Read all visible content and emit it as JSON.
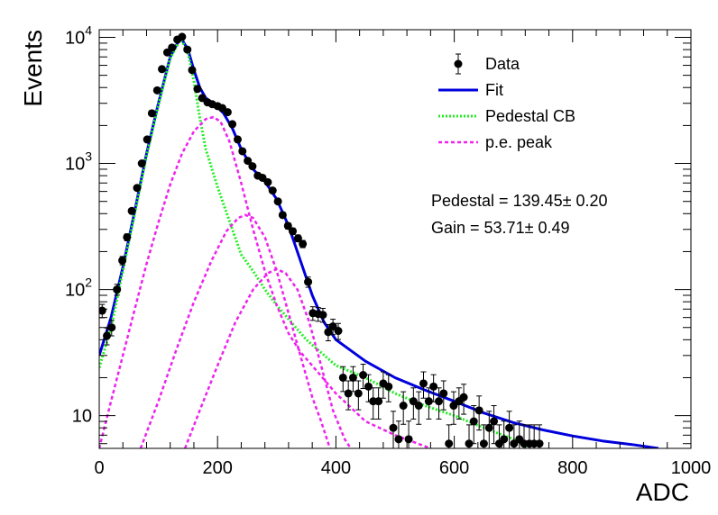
{
  "chart_data": {
    "type": "scatter",
    "title": "",
    "xlabel": "ADC",
    "ylabel": "Events",
    "xlim": [
      0,
      1000
    ],
    "ylim": [
      5.5,
      11500
    ],
    "yscale": "log",
    "grid": false,
    "legend_position": "top-right",
    "x_ticks": [
      0,
      200,
      400,
      600,
      800,
      1000
    ],
    "x_tick_labels": [
      "0",
      "200",
      "400",
      "600",
      "800",
      "1000"
    ],
    "y_ticks": [
      10,
      100,
      1000,
      10000
    ],
    "y_tick_labels": [
      {
        "base": "10",
        "exp": ""
      },
      {
        "base": "10",
        "exp": "2"
      },
      {
        "base": "10",
        "exp": "3"
      },
      {
        "base": "10",
        "exp": "4"
      }
    ],
    "annotations": [
      "Pedestal = 139.45± 0.20",
      "Gain = 53.71± 0.49"
    ],
    "legend": [
      {
        "label": "Data",
        "style": "marker",
        "color": "#000000"
      },
      {
        "label": "Fit",
        "style": "solid",
        "color": "#0000dd"
      },
      {
        "label": "Pedestal CB",
        "style": "dotted",
        "color": "#22ee22"
      },
      {
        "label": "p.e. peak",
        "style": "dashed",
        "color": "#ee22ee"
      }
    ],
    "series": [
      {
        "name": "Data",
        "kind": "points",
        "color": "#000000",
        "points": [
          {
            "x": 5,
            "y": 68
          },
          {
            "x": 13,
            "y": 43
          },
          {
            "x": 21,
            "y": 50
          },
          {
            "x": 30,
            "y": 100
          },
          {
            "x": 39,
            "y": 170
          },
          {
            "x": 47,
            "y": 260
          },
          {
            "x": 55,
            "y": 420
          },
          {
            "x": 64,
            "y": 640
          },
          {
            "x": 72,
            "y": 1000
          },
          {
            "x": 81,
            "y": 1550
          },
          {
            "x": 89,
            "y": 2500
          },
          {
            "x": 98,
            "y": 3800
          },
          {
            "x": 106,
            "y": 5600
          },
          {
            "x": 115,
            "y": 7600
          },
          {
            "x": 123,
            "y": 8300
          },
          {
            "x": 132,
            "y": 9600
          },
          {
            "x": 140,
            "y": 10100
          },
          {
            "x": 149,
            "y": 8000
          },
          {
            "x": 157,
            "y": 5500
          },
          {
            "x": 166,
            "y": 3900
          },
          {
            "x": 174,
            "y": 3300
          },
          {
            "x": 183,
            "y": 3050
          },
          {
            "x": 191,
            "y": 2950
          },
          {
            "x": 200,
            "y": 2850
          },
          {
            "x": 208,
            "y": 2750
          },
          {
            "x": 217,
            "y": 2550
          },
          {
            "x": 225,
            "y": 2050
          },
          {
            "x": 234,
            "y": 1550
          },
          {
            "x": 242,
            "y": 1250
          },
          {
            "x": 251,
            "y": 1050
          },
          {
            "x": 259,
            "y": 950
          },
          {
            "x": 268,
            "y": 800
          },
          {
            "x": 276,
            "y": 770
          },
          {
            "x": 285,
            "y": 710
          },
          {
            "x": 293,
            "y": 610
          },
          {
            "x": 302,
            "y": 500
          },
          {
            "x": 310,
            "y": 390
          },
          {
            "x": 319,
            "y": 320
          },
          {
            "x": 327,
            "y": 290
          },
          {
            "x": 336,
            "y": 255
          },
          {
            "x": 344,
            "y": 230
          },
          {
            "x": 353,
            "y": 115
          },
          {
            "x": 361,
            "y": 65
          },
          {
            "x": 370,
            "y": 64
          },
          {
            "x": 378,
            "y": 63
          },
          {
            "x": 387,
            "y": 46
          },
          {
            "x": 395,
            "y": 51
          },
          {
            "x": 404,
            "y": 47
          },
          {
            "x": 412,
            "y": 20
          },
          {
            "x": 421,
            "y": 15
          },
          {
            "x": 429,
            "y": 20
          },
          {
            "x": 438,
            "y": 15
          },
          {
            "x": 446,
            "y": 21
          },
          {
            "x": 455,
            "y": 17
          },
          {
            "x": 463,
            "y": 13
          },
          {
            "x": 472,
            "y": 13
          },
          {
            "x": 480,
            "y": 18
          },
          {
            "x": 489,
            "y": 17
          },
          {
            "x": 497,
            "y": 8
          },
          {
            "x": 506,
            "y": 6.5
          },
          {
            "x": 514,
            "y": 12
          },
          {
            "x": 523,
            "y": 6.5
          },
          {
            "x": 531,
            "y": 13
          },
          {
            "x": 540,
            "y": 12
          },
          {
            "x": 548,
            "y": 18
          },
          {
            "x": 557,
            "y": 13
          },
          {
            "x": 565,
            "y": 17
          },
          {
            "x": 574,
            "y": 13
          },
          {
            "x": 582,
            "y": 15
          },
          {
            "x": 591,
            "y": 6
          },
          {
            "x": 599,
            "y": 12
          },
          {
            "x": 608,
            "y": 13
          },
          {
            "x": 616,
            "y": 14
          },
          {
            "x": 625,
            "y": 6
          },
          {
            "x": 633,
            "y": 9
          },
          {
            "x": 642,
            "y": 11
          },
          {
            "x": 650,
            "y": 6
          },
          {
            "x": 659,
            "y": 8
          },
          {
            "x": 667,
            "y": 9
          },
          {
            "x": 676,
            "y": 6
          },
          {
            "x": 684,
            "y": 6.5
          },
          {
            "x": 693,
            "y": 8
          },
          {
            "x": 701,
            "y": 6
          },
          {
            "x": 710,
            "y": 6.5
          },
          {
            "x": 718,
            "y": 6
          },
          {
            "x": 727,
            "y": 6
          },
          {
            "x": 735,
            "y": 6
          },
          {
            "x": 744,
            "y": 6
          }
        ]
      },
      {
        "name": "Fit",
        "kind": "line",
        "color": "#0000dd",
        "points": [
          {
            "x": 0,
            "y": 30
          },
          {
            "x": 20,
            "y": 60
          },
          {
            "x": 40,
            "y": 150
          },
          {
            "x": 60,
            "y": 420
          },
          {
            "x": 80,
            "y": 1200
          },
          {
            "x": 100,
            "y": 3000
          },
          {
            "x": 120,
            "y": 7000
          },
          {
            "x": 135,
            "y": 9500
          },
          {
            "x": 140,
            "y": 9600
          },
          {
            "x": 150,
            "y": 8000
          },
          {
            "x": 160,
            "y": 5500
          },
          {
            "x": 170,
            "y": 4000
          },
          {
            "x": 180,
            "y": 3300
          },
          {
            "x": 195,
            "y": 2950
          },
          {
            "x": 210,
            "y": 2500
          },
          {
            "x": 225,
            "y": 1900
          },
          {
            "x": 240,
            "y": 1300
          },
          {
            "x": 260,
            "y": 900
          },
          {
            "x": 280,
            "y": 720
          },
          {
            "x": 300,
            "y": 520
          },
          {
            "x": 320,
            "y": 320
          },
          {
            "x": 340,
            "y": 170
          },
          {
            "x": 360,
            "y": 90
          },
          {
            "x": 380,
            "y": 55
          },
          {
            "x": 400,
            "y": 40
          },
          {
            "x": 450,
            "y": 27
          },
          {
            "x": 500,
            "y": 20
          },
          {
            "x": 550,
            "y": 16
          },
          {
            "x": 600,
            "y": 13
          },
          {
            "x": 650,
            "y": 10.5
          },
          {
            "x": 700,
            "y": 8.8
          },
          {
            "x": 750,
            "y": 7.7
          },
          {
            "x": 800,
            "y": 6.9
          },
          {
            "x": 850,
            "y": 6.3
          },
          {
            "x": 900,
            "y": 5.9
          },
          {
            "x": 945,
            "y": 5.5
          }
        ]
      },
      {
        "name": "Pedestal CB",
        "kind": "line",
        "color": "#22ee22",
        "points": [
          {
            "x": 0,
            "y": 24
          },
          {
            "x": 20,
            "y": 50
          },
          {
            "x": 40,
            "y": 140
          },
          {
            "x": 60,
            "y": 400
          },
          {
            "x": 80,
            "y": 1150
          },
          {
            "x": 100,
            "y": 2900
          },
          {
            "x": 120,
            "y": 6800
          },
          {
            "x": 135,
            "y": 9300
          },
          {
            "x": 140,
            "y": 9400
          },
          {
            "x": 150,
            "y": 7500
          },
          {
            "x": 160,
            "y": 4500
          },
          {
            "x": 170,
            "y": 2300
          },
          {
            "x": 180,
            "y": 1300
          },
          {
            "x": 200,
            "y": 650
          },
          {
            "x": 220,
            "y": 350
          },
          {
            "x": 240,
            "y": 190
          },
          {
            "x": 260,
            "y": 140
          },
          {
            "x": 280,
            "y": 100
          },
          {
            "x": 300,
            "y": 75
          },
          {
            "x": 350,
            "y": 40
          },
          {
            "x": 400,
            "y": 25
          },
          {
            "x": 450,
            "y": 20
          },
          {
            "x": 500,
            "y": 15
          },
          {
            "x": 550,
            "y": 12
          },
          {
            "x": 600,
            "y": 10
          },
          {
            "x": 650,
            "y": 8
          },
          {
            "x": 700,
            "y": 6.5
          },
          {
            "x": 730,
            "y": 5.5
          }
        ]
      },
      {
        "name": "p.e. peak",
        "kind": "line",
        "color": "#ee22ee",
        "points": [
          {
            "x": 0,
            "y": 5.5
          },
          {
            "x": 20,
            "y": 13
          },
          {
            "x": 40,
            "y": 30
          },
          {
            "x": 60,
            "y": 70
          },
          {
            "x": 80,
            "y": 160
          },
          {
            "x": 100,
            "y": 340
          },
          {
            "x": 120,
            "y": 680
          },
          {
            "x": 140,
            "y": 1200
          },
          {
            "x": 160,
            "y": 1800
          },
          {
            "x": 180,
            "y": 2250
          },
          {
            "x": 193,
            "y": 2330
          },
          {
            "x": 205,
            "y": 2150
          },
          {
            "x": 220,
            "y": 1500
          },
          {
            "x": 240,
            "y": 700
          },
          {
            "x": 260,
            "y": 300
          },
          {
            "x": 280,
            "y": 140
          },
          {
            "x": 300,
            "y": 75
          },
          {
            "x": 320,
            "y": 45
          },
          {
            "x": 340,
            "y": 32
          },
          {
            "x": 370,
            "y": 22
          },
          {
            "x": 400,
            "y": 15
          },
          {
            "x": 450,
            "y": 9
          },
          {
            "x": 500,
            "y": 7
          },
          {
            "x": 560,
            "y": 5.5
          }
        ]
      },
      {
        "name": "p.e. peak",
        "kind": "line",
        "color": "#ee22ee",
        "points": [
          {
            "x": 70,
            "y": 5.5
          },
          {
            "x": 100,
            "y": 13
          },
          {
            "x": 130,
            "y": 33
          },
          {
            "x": 160,
            "y": 80
          },
          {
            "x": 190,
            "y": 170
          },
          {
            "x": 215,
            "y": 290
          },
          {
            "x": 235,
            "y": 370
          },
          {
            "x": 247,
            "y": 390
          },
          {
            "x": 260,
            "y": 370
          },
          {
            "x": 280,
            "y": 260
          },
          {
            "x": 300,
            "y": 140
          },
          {
            "x": 320,
            "y": 65
          },
          {
            "x": 340,
            "y": 30
          },
          {
            "x": 360,
            "y": 14
          },
          {
            "x": 375,
            "y": 9
          },
          {
            "x": 390,
            "y": 5.5
          }
        ]
      },
      {
        "name": "p.e. peak",
        "kind": "line",
        "color": "#ee22ee",
        "points": [
          {
            "x": 145,
            "y": 5.5
          },
          {
            "x": 170,
            "y": 11
          },
          {
            "x": 200,
            "y": 25
          },
          {
            "x": 230,
            "y": 55
          },
          {
            "x": 260,
            "y": 100
          },
          {
            "x": 285,
            "y": 135
          },
          {
            "x": 300,
            "y": 145
          },
          {
            "x": 315,
            "y": 135
          },
          {
            "x": 335,
            "y": 100
          },
          {
            "x": 355,
            "y": 55
          },
          {
            "x": 375,
            "y": 25
          },
          {
            "x": 395,
            "y": 11
          },
          {
            "x": 415,
            "y": 6.5
          },
          {
            "x": 425,
            "y": 5.5
          }
        ]
      }
    ]
  }
}
